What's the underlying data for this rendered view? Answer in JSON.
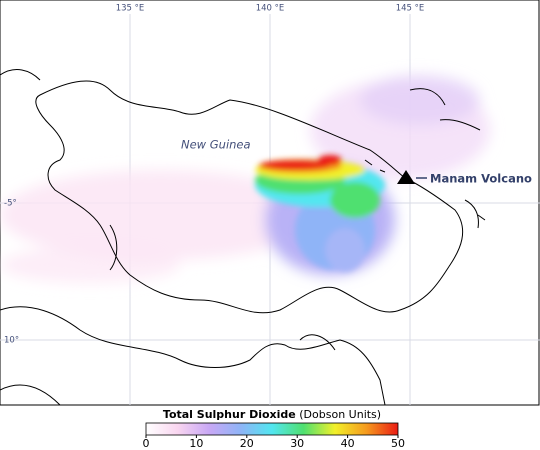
{
  "map": {
    "lon_labels": [
      "135 °E",
      "140 °E",
      "145 °E"
    ],
    "lat_labels": [
      "-5°",
      "10°"
    ],
    "region_label": "New Guinea",
    "volcano_label": "Manam Volcano",
    "colorbar": {
      "title": "Total Sulphur Dioxide",
      "units": "(Dobson Units)",
      "lim": [
        0,
        50
      ],
      "ticks": [
        0,
        10,
        20,
        30,
        40,
        50
      ],
      "colors": [
        "#ffffff",
        "#f9d6f0",
        "#c9a8f5",
        "#8fb4f7",
        "#52e6f0",
        "#4fe070",
        "#f2f02a",
        "#f59a1e",
        "#ea1c14"
      ]
    }
  }
}
